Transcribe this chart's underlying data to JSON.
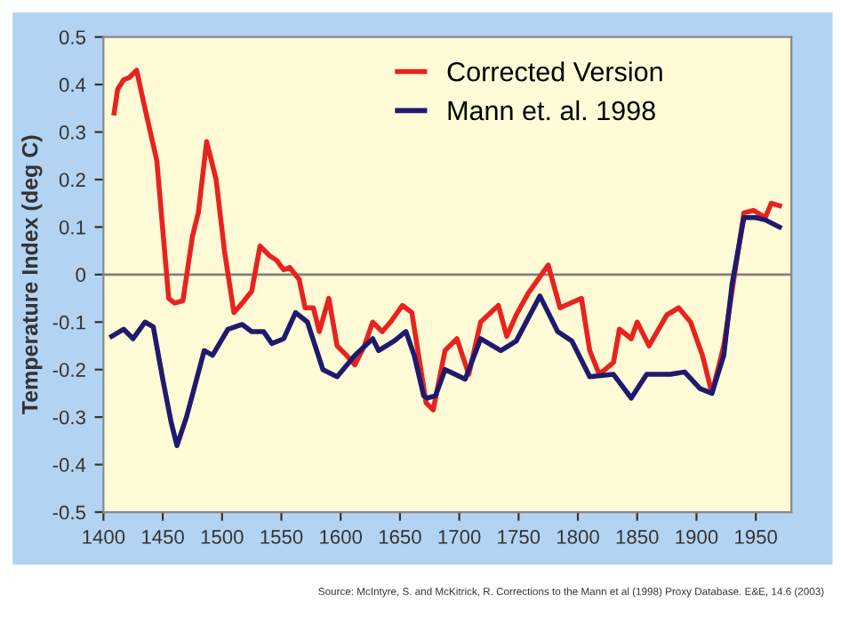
{
  "chart_data": {
    "type": "line",
    "ylabel": "Temperature Index (deg C)",
    "xlim": [
      1400,
      1980
    ],
    "xticks": [
      1400,
      1450,
      1500,
      1550,
      1600,
      1650,
      1700,
      1750,
      1800,
      1850,
      1900,
      1950
    ],
    "ylim": [
      -0.5,
      0.5
    ],
    "yticks": [
      -0.5,
      -0.4,
      -0.3,
      -0.2,
      -0.1,
      0,
      0.1,
      0.2,
      0.3,
      0.4,
      0.5
    ],
    "legend": "top right",
    "grid": false,
    "marker": "none",
    "line_style": "solid",
    "ref_lines": [
      {
        "axis": "y",
        "value": 0,
        "color": "#808080"
      }
    ],
    "annotations": [
      "Source: McIntyre, S. and McKitrick, R. Corrections to the Mann et al (1998) Proxy Database. E&E, 14.6 (2003)"
    ],
    "series": [
      {
        "name": "Corrected Version",
        "color": "#e8231f",
        "x": [
          1409,
          1412,
          1417,
          1422,
          1428,
          1435,
          1445,
          1455,
          1460,
          1467,
          1475,
          1480,
          1487,
          1495,
          1502,
          1510,
          1517,
          1525,
          1532,
          1540,
          1546,
          1552,
          1557,
          1565,
          1570,
          1577,
          1582,
          1590,
          1597,
          1605,
          1612,
          1620,
          1627,
          1635,
          1642,
          1652,
          1660,
          1667,
          1672,
          1678,
          1688,
          1698,
          1708,
          1718,
          1733,
          1740,
          1748,
          1758,
          1775,
          1785,
          1803,
          1810,
          1818,
          1830,
          1835,
          1845,
          1850,
          1860,
          1875,
          1885,
          1895,
          1905,
          1913,
          1923,
          1933,
          1940,
          1948,
          1958,
          1963,
          1970
        ],
        "values": [
          0.34,
          0.39,
          0.41,
          0.415,
          0.43,
          0.35,
          0.24,
          -0.05,
          -0.06,
          -0.055,
          0.08,
          0.13,
          0.28,
          0.2,
          0.05,
          -0.08,
          -0.06,
          -0.035,
          0.06,
          0.04,
          0.03,
          0.01,
          0.015,
          -0.01,
          -0.07,
          -0.07,
          -0.12,
          -0.05,
          -0.15,
          -0.17,
          -0.19,
          -0.15,
          -0.1,
          -0.12,
          -0.1,
          -0.065,
          -0.08,
          -0.19,
          -0.27,
          -0.285,
          -0.16,
          -0.135,
          -0.21,
          -0.1,
          -0.065,
          -0.13,
          -0.085,
          -0.04,
          0.02,
          -0.07,
          -0.05,
          -0.16,
          -0.21,
          -0.185,
          -0.115,
          -0.135,
          -0.1,
          -0.15,
          -0.085,
          -0.07,
          -0.1,
          -0.17,
          -0.25,
          -0.15,
          0.015,
          0.13,
          0.135,
          0.12,
          0.15,
          0.145
        ]
      },
      {
        "name": "Mann et. al. 1998",
        "color": "#1f1a6e",
        "x": [
          1407,
          1417,
          1425,
          1435,
          1442,
          1450,
          1457,
          1462,
          1470,
          1485,
          1492,
          1505,
          1517,
          1525,
          1535,
          1542,
          1552,
          1562,
          1572,
          1585,
          1597,
          1612,
          1627,
          1632,
          1645,
          1655,
          1662,
          1670,
          1673,
          1680,
          1688,
          1705,
          1718,
          1735,
          1748,
          1768,
          1783,
          1795,
          1810,
          1830,
          1845,
          1858,
          1878,
          1890,
          1903,
          1913,
          1923,
          1930,
          1940,
          1950,
          1958,
          1970
        ],
        "values": [
          -0.13,
          -0.115,
          -0.135,
          -0.1,
          -0.11,
          -0.22,
          -0.31,
          -0.36,
          -0.3,
          -0.16,
          -0.17,
          -0.115,
          -0.105,
          -0.12,
          -0.12,
          -0.145,
          -0.135,
          -0.08,
          -0.1,
          -0.2,
          -0.215,
          -0.17,
          -0.135,
          -0.16,
          -0.14,
          -0.12,
          -0.17,
          -0.255,
          -0.26,
          -0.255,
          -0.2,
          -0.22,
          -0.135,
          -0.16,
          -0.14,
          -0.045,
          -0.12,
          -0.14,
          -0.215,
          -0.21,
          -0.26,
          -0.21,
          -0.21,
          -0.205,
          -0.24,
          -0.25,
          -0.17,
          -0.02,
          0.12,
          0.12,
          0.115,
          0.1
        ]
      }
    ]
  }
}
